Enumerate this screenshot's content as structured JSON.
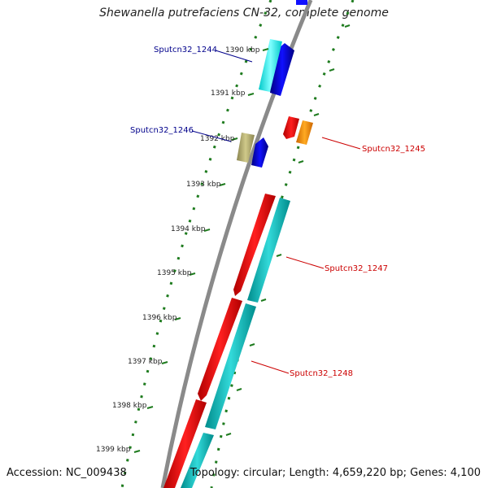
{
  "title": "Shewanella putrefaciens CN-32, complete genome",
  "footer": {
    "accession": "Accession: NC_009438",
    "summary": "Topology: circular; Length: 4,659,220 bp; Genes: 4,100"
  },
  "kbp_ticks": [
    "1390 kbp",
    "1391 kbp",
    "1392 kbp",
    "1393 kbp",
    "1394 kbp",
    "1395 kbp",
    "1396 kbp",
    "1397 kbp",
    "1398 kbp",
    "1399 kbp"
  ],
  "gene_labels": [
    {
      "text": "Sputcn32_1244",
      "strand": "forward",
      "color": "#00008b"
    },
    {
      "text": "Sputcn32_1245",
      "strand": "reverse",
      "color": "#cc0000"
    },
    {
      "text": "Sputcn32_1246",
      "strand": "forward",
      "color": "#00008b"
    },
    {
      "text": "Sputcn32_1247",
      "strand": "reverse",
      "color": "#cc0000"
    },
    {
      "text": "Sputcn32_1248",
      "strand": "reverse",
      "color": "#cc0000"
    }
  ],
  "colors": {
    "backbone": "#8a8a8a",
    "tick": "#1e7b1e",
    "forward_gene": "#0000ee",
    "reverse_gene": "#ff0000",
    "cyan_gene": "#22cccc",
    "aqua_gene": "#00ffff",
    "olive_gene": "#b5ae6a",
    "orange_gene": "#ff9900"
  }
}
